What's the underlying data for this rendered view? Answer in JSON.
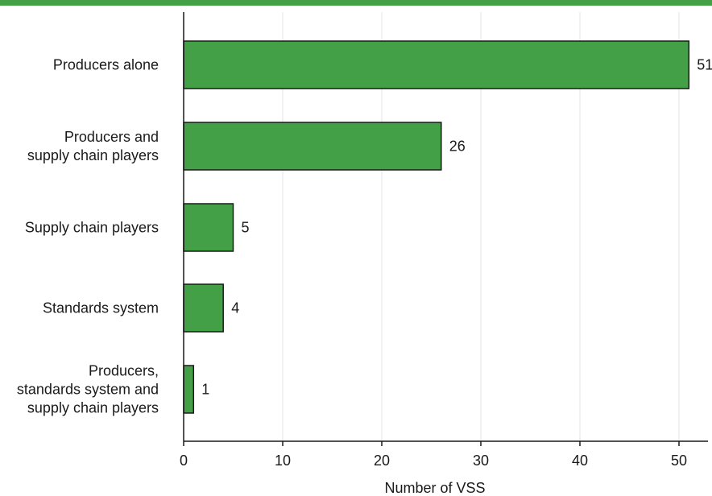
{
  "colors": {
    "accent": "#43A047",
    "bar_fill": "#43A047",
    "bar_stroke": "#1b1b1b",
    "grid": "#e6e6e6",
    "axis": "#1a1a1a"
  },
  "chart_data": {
    "type": "bar",
    "orientation": "horizontal",
    "categories": [
      [
        "Producers alone"
      ],
      [
        "Producers and",
        "supply chain players"
      ],
      [
        "Supply chain players"
      ],
      [
        "Standards system"
      ],
      [
        "Producers,",
        "standards system and",
        "supply chain players"
      ]
    ],
    "values": [
      51,
      26,
      5,
      4,
      1
    ],
    "data_labels": [
      "51",
      "26",
      "5",
      "4",
      "1"
    ],
    "xlabel": "Number of VSS",
    "xlim": [
      0,
      53
    ],
    "xticks": [
      0,
      10,
      20,
      30,
      40,
      50
    ],
    "grid": "vertical"
  }
}
